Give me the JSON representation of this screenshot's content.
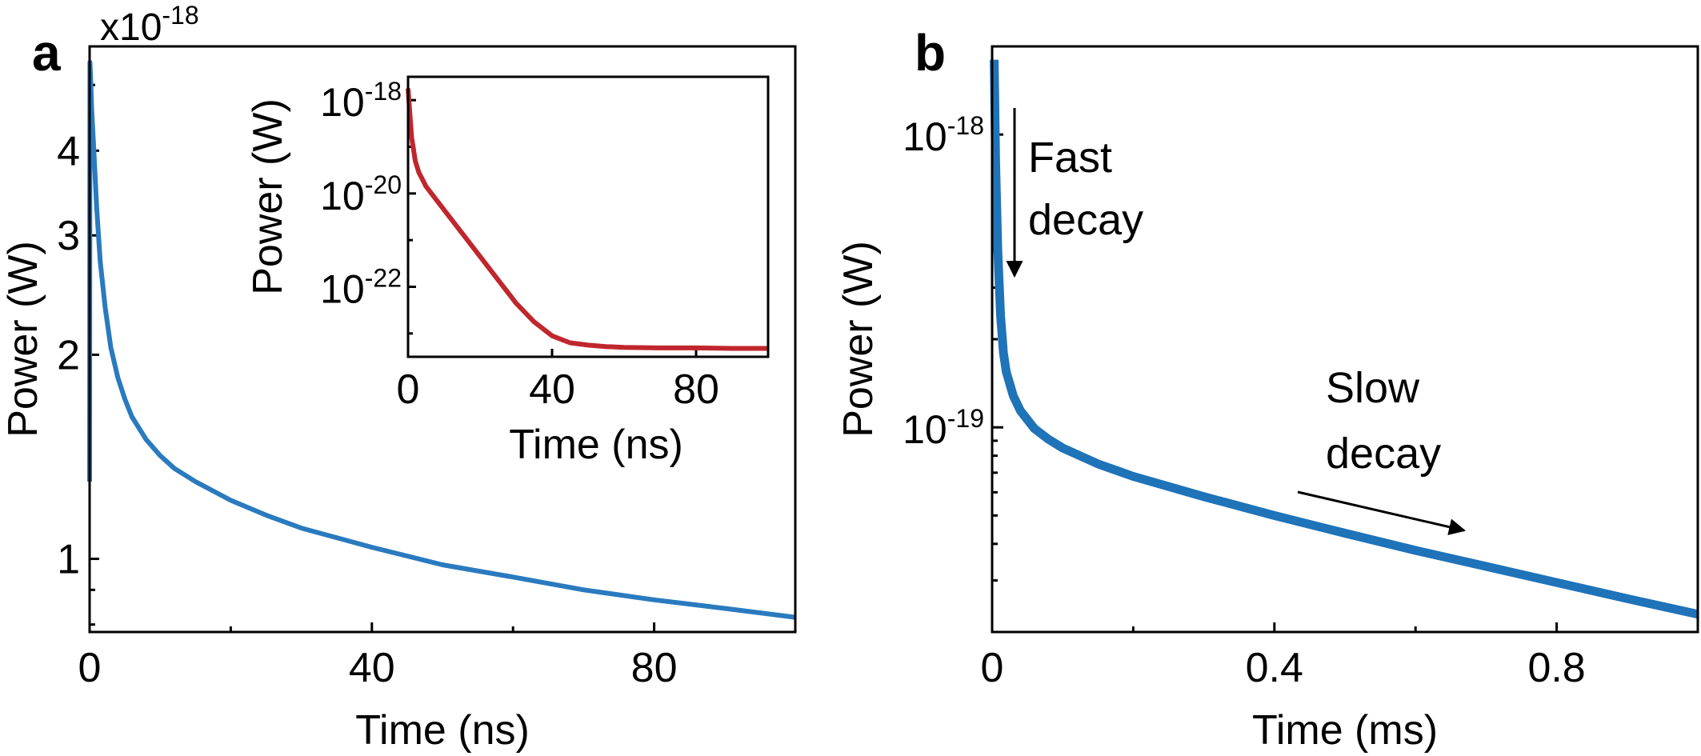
{
  "chart_data": [
    {
      "panel_label": "a",
      "type": "line",
      "yscale": "log",
      "title": "",
      "xlabel": "Time (ns)",
      "ylabel": "Power (W)",
      "y_multiplier_label": "x10",
      "y_multiplier_exponent": "-18",
      "xlim": [
        0,
        100
      ],
      "ylim": [
        0.78,
        5.7
      ],
      "x_ticks": [
        0,
        40,
        80
      ],
      "x_minor_ticks": [
        20,
        60,
        100
      ],
      "y_ticks": [
        {
          "value": 1,
          "label": "1"
        },
        {
          "value": 2,
          "label": "2"
        },
        {
          "value": 3,
          "label": "3"
        },
        {
          "value": 4,
          "label": "4"
        }
      ],
      "y_minor_ticks": [
        0.8,
        0.9,
        5
      ],
      "series": [
        {
          "name": "Power",
          "color": "#2a7abf",
          "x": [
            0,
            0.05,
            0.15,
            0.3,
            0.6,
            1.0,
            1.5,
            2.2,
            3,
            4,
            5,
            6,
            8,
            10,
            12,
            15,
            20,
            25,
            30,
            40,
            50,
            60,
            70,
            80,
            90,
            100
          ],
          "y": [
            1.3,
            5.4,
            5.1,
            4.6,
            4.0,
            3.3,
            2.75,
            2.35,
            2.05,
            1.85,
            1.72,
            1.62,
            1.5,
            1.42,
            1.36,
            1.3,
            1.22,
            1.16,
            1.11,
            1.04,
            0.98,
            0.94,
            0.9,
            0.87,
            0.845,
            0.82
          ]
        }
      ],
      "inset": {
        "type": "line",
        "yscale": "log",
        "xlabel": "Time (ns)",
        "ylabel": "Power (W)",
        "xlim": [
          0,
          100
        ],
        "ylim": [
          -23.5,
          -17.5
        ],
        "x_ticks": [
          0,
          40,
          80
        ],
        "y_ticks": [
          {
            "exp": -22,
            "base": "10",
            "sup": "-22"
          },
          {
            "exp": -20,
            "base": "10",
            "sup": "-20"
          },
          {
            "exp": -18,
            "base": "10",
            "sup": "-18"
          }
        ],
        "series": [
          {
            "name": "Power",
            "color": "#c0262d",
            "x": [
              0,
              0.5,
              1,
              2,
              3,
              4,
              5,
              7,
              10,
              15,
              20,
              25,
              30,
              35,
              40,
              45,
              50,
              55,
              60,
              70,
              80,
              90,
              100
            ],
            "y_log10": [
              -17.75,
              -18.3,
              -18.8,
              -19.3,
              -19.55,
              -19.7,
              -19.85,
              -20.05,
              -20.35,
              -20.85,
              -21.35,
              -21.85,
              -22.35,
              -22.75,
              -23.05,
              -23.2,
              -23.25,
              -23.28,
              -23.3,
              -23.31,
              -23.31,
              -23.32,
              -23.32
            ]
          }
        ]
      }
    },
    {
      "panel_label": "b",
      "type": "line",
      "yscale": "log",
      "title": "",
      "xlabel": "Time (ms)",
      "ylabel": "Power (W)",
      "xlim": [
        0,
        1.0
      ],
      "ylim": [
        2e-20,
        2e-18
      ],
      "x_ticks": [
        {
          "value": 0,
          "label": "0"
        },
        {
          "value": 0.4,
          "label": "0.4"
        },
        {
          "value": 0.8,
          "label": "0.8"
        }
      ],
      "x_minor_ticks": [
        0.2,
        0.6,
        1.0
      ],
      "y_ticks": [
        {
          "value": 1e-19,
          "base": "10",
          "sup": "-19"
        },
        {
          "value": 1e-18,
          "base": "10",
          "sup": "-18"
        }
      ],
      "y_minor_ticks": [
        3e-20,
        4e-20,
        5e-20,
        6e-20,
        7e-20,
        8e-20,
        9e-20,
        2e-19,
        3e-19,
        4e-19,
        5e-19,
        6e-19,
        7e-19,
        8e-19,
        9e-19
      ],
      "series": [
        {
          "name": "Power",
          "color": "#1f73b8",
          "x": [
            0.003,
            0.005,
            0.008,
            0.012,
            0.016,
            0.02,
            0.03,
            0.04,
            0.06,
            0.08,
            0.1,
            0.15,
            0.2,
            0.3,
            0.4,
            0.5,
            0.6,
            0.7,
            0.8,
            0.9,
            1.0
          ],
          "y": [
            1.8e-18,
            8e-19,
            4e-19,
            2.4e-19,
            1.8e-19,
            1.55e-19,
            1.28e-19,
            1.14e-19,
            9.9e-20,
            9.1e-20,
            8.5e-20,
            7.5e-20,
            6.8e-20,
            5.8e-20,
            5e-20,
            4.35e-20,
            3.8e-20,
            3.35e-20,
            2.95e-20,
            2.6e-20,
            2.3e-20
          ]
        }
      ],
      "annotations": [
        {
          "text_lines": [
            "Fast",
            "decay"
          ],
          "arrow": "down",
          "anchor": "near-left-top"
        },
        {
          "text_lines": [
            "Slow",
            "decay"
          ],
          "arrow": "diagonal-right",
          "anchor": "center-right"
        }
      ]
    }
  ]
}
